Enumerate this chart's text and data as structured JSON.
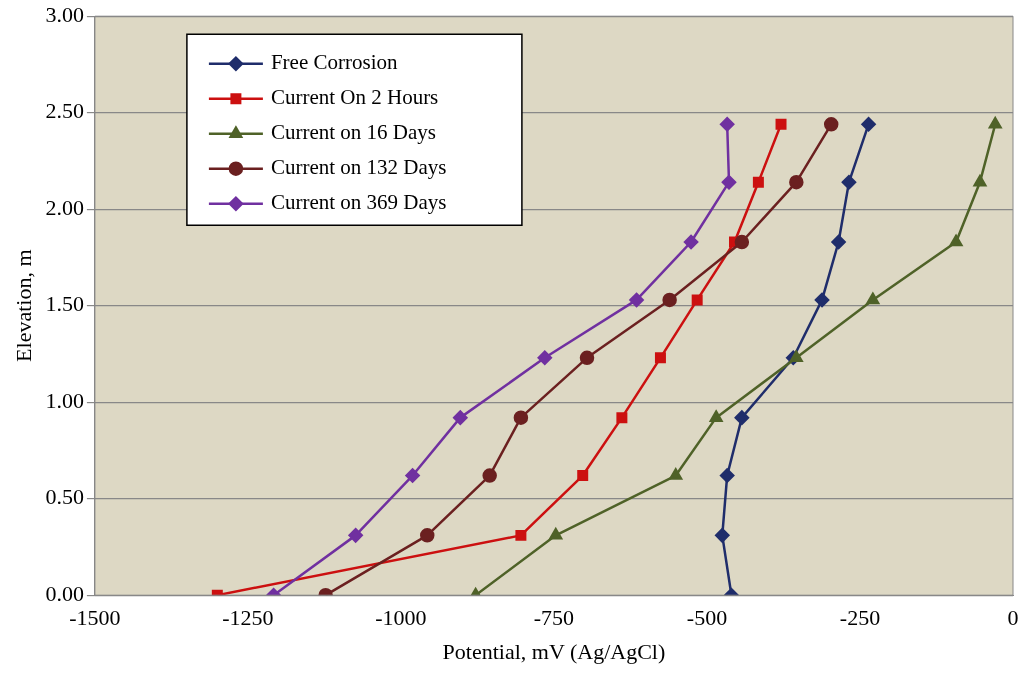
{
  "chart_data": {
    "type": "line",
    "xlabel": "Potential, mV (Ag/AgCl)",
    "ylabel": "Elevation, m",
    "xlim": [
      -1500,
      0
    ],
    "xticks": [
      -1500,
      -1250,
      -1000,
      -750,
      -500,
      -250,
      0
    ],
    "ylim": [
      0,
      3
    ],
    "yticks": [
      {
        "value": 0,
        "label": "0.00"
      },
      {
        "value": 0.5,
        "label": "0.50"
      },
      {
        "value": 1,
        "label": "1.00"
      },
      {
        "value": 1.5,
        "label": "1.50"
      },
      {
        "value": 2,
        "label": "2.00"
      },
      {
        "value": 2.5,
        "label": "2.50"
      },
      {
        "value": 3,
        "label": "3.00"
      }
    ],
    "grid": "y",
    "legend": "top left",
    "line_style": "solid",
    "series": [
      {
        "name": "Free Corrosion",
        "color": "#1f2d6b",
        "marker": "diamond",
        "x": [
          -460,
          -475,
          -467,
          -443,
          -359,
          -312,
          -285,
          -268,
          -236
        ],
        "values": [
          0,
          0.31,
          0.62,
          0.92,
          1.23,
          1.53,
          1.83,
          2.14,
          2.44
        ]
      },
      {
        "name": "Current On 2 Hours",
        "color": "#cc1010",
        "marker": "square",
        "x": [
          -1300,
          -804,
          -703,
          -639,
          -576,
          -516,
          -455,
          -416,
          -379
        ],
        "values": [
          0,
          0.31,
          0.62,
          0.92,
          1.23,
          1.53,
          1.83,
          2.14,
          2.44
        ]
      },
      {
        "name": "Current on 16 Days",
        "color": "#4f6228",
        "marker": "triangle",
        "x": [
          -878,
          -747,
          -551,
          -485,
          -354,
          -229,
          -93,
          -54,
          -29
        ],
        "values": [
          0,
          0.31,
          0.62,
          0.92,
          1.23,
          1.53,
          1.83,
          2.14,
          2.44
        ]
      },
      {
        "name": "Current on 132 Days",
        "color": "#6b2020",
        "marker": "circle",
        "x": [
          -1123,
          -957,
          -855,
          -804,
          -696,
          -561,
          -443,
          -354,
          -297
        ],
        "values": [
          0,
          0.31,
          0.62,
          0.92,
          1.23,
          1.53,
          1.83,
          2.14,
          2.44
        ]
      },
      {
        "name": "Current on 369 Days",
        "color": "#7030a0",
        "marker": "diamond",
        "x": [
          -1208,
          -1074,
          -981,
          -903,
          -765,
          -615,
          -526,
          -464,
          -467
        ],
        "values": [
          0,
          0.31,
          0.62,
          0.92,
          1.23,
          1.53,
          1.83,
          2.14,
          2.44
        ]
      }
    ]
  }
}
